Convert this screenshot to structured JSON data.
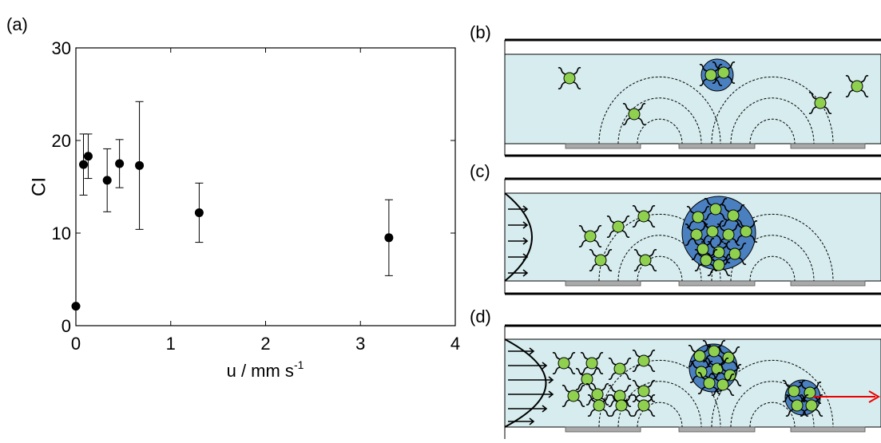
{
  "chart_data": {
    "type": "scatter",
    "panel_label": "(a)",
    "y_label": "CI",
    "x_label": "u / mm s",
    "x_label_sup": "-1",
    "x": [
      0,
      0.08,
      0.13,
      0.33,
      0.46,
      0.67,
      1.3,
      3.3
    ],
    "values": [
      2.1,
      17.4,
      18.3,
      15.7,
      17.5,
      17.3,
      12.2,
      9.5
    ],
    "errors": [
      null,
      3.3,
      2.4,
      3.4,
      2.6,
      6.9,
      3.2,
      4.1
    ],
    "color": "#000000",
    "xlim": [
      0,
      4
    ],
    "xticks": [
      0,
      1,
      2,
      3,
      4
    ],
    "ylim": [
      0,
      30
    ],
    "yticks": [
      0,
      10,
      20,
      30
    ]
  },
  "diagram": {
    "panels": [
      "(b)",
      "(c)",
      "(d)"
    ]
  }
}
